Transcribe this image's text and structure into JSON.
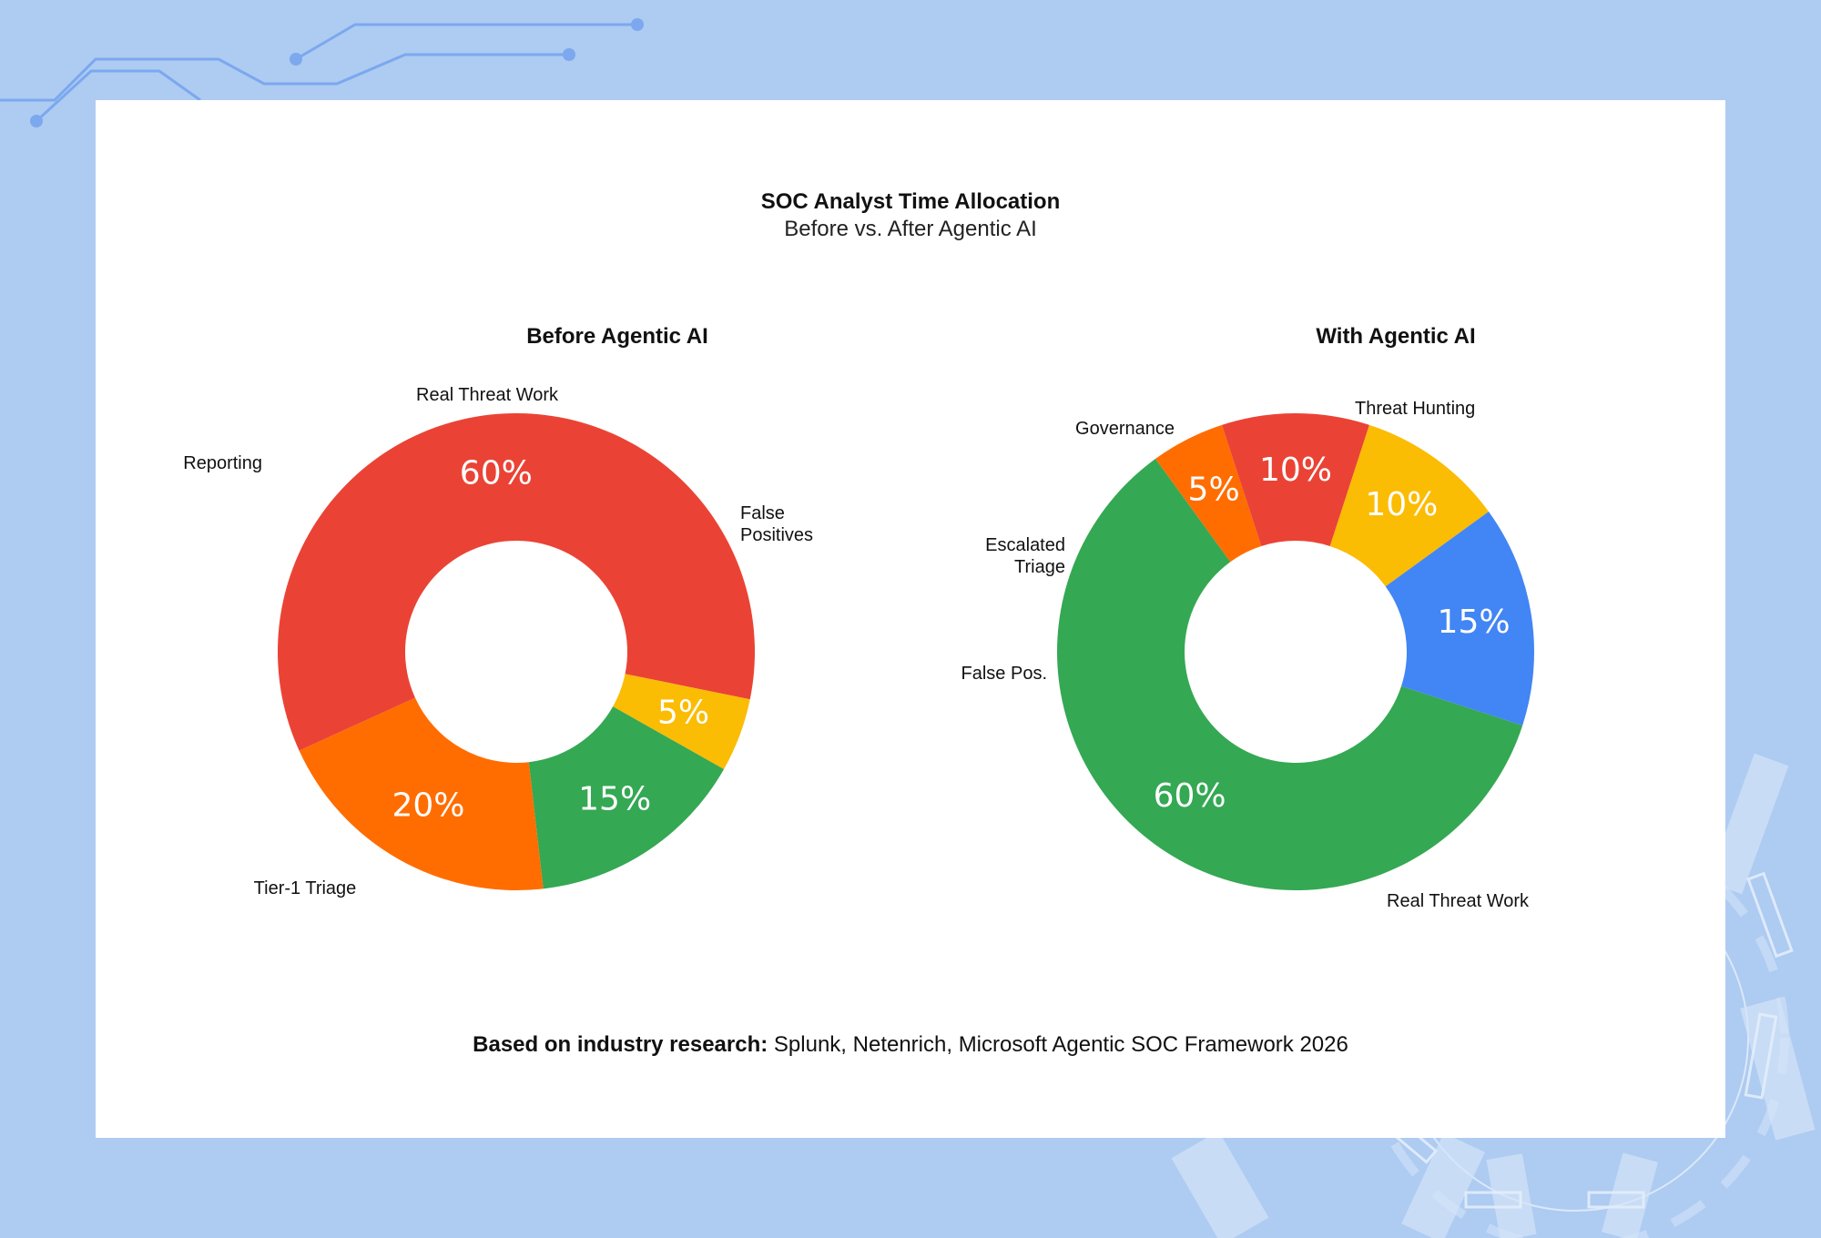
{
  "title": "SOC Analyst Time Allocation",
  "subtitle": "Before vs. After Agentic AI",
  "footer": {
    "prefix": "Based on industry research:",
    "text": " Splunk, Netenrich, Microsoft Agentic SOC Framework 2026"
  },
  "colors": {
    "red": "#ea4335",
    "orange": "#ff6d01",
    "green": "#34a853",
    "yellow": "#fbbc04",
    "blue": "#4285f4",
    "background": "#aecbf1"
  },
  "chart_data": [
    {
      "type": "pie",
      "title": "Before Agentic AI",
      "slices": [
        {
          "label": "Tier-1 Triage",
          "value": 60,
          "display": "60%",
          "color": "#ea4335"
        },
        {
          "label": "Reporting",
          "value": 5,
          "display": "5%",
          "color": "#fbbc04"
        },
        {
          "label": "Real Threat Work",
          "value": 15,
          "display": "15%",
          "color": "#34a853"
        },
        {
          "label": "False\nPositives",
          "value": 20,
          "display": "20%",
          "color": "#ff6d01"
        }
      ]
    },
    {
      "type": "pie",
      "title": "With Agentic AI",
      "slices": [
        {
          "label": "Real Threat Work",
          "value": 60,
          "display": "60%",
          "color": "#34a853"
        },
        {
          "label": "False Pos.",
          "value": 5,
          "display": "5%",
          "color": "#ff6d01"
        },
        {
          "label": "Escalated\nTriage",
          "value": 10,
          "display": "10%",
          "color": "#ea4335"
        },
        {
          "label": "Governance",
          "value": 10,
          "display": "10%",
          "color": "#fbbc04"
        },
        {
          "label": "Threat Hunting",
          "value": 15,
          "display": "15%",
          "color": "#4285f4"
        }
      ]
    }
  ]
}
